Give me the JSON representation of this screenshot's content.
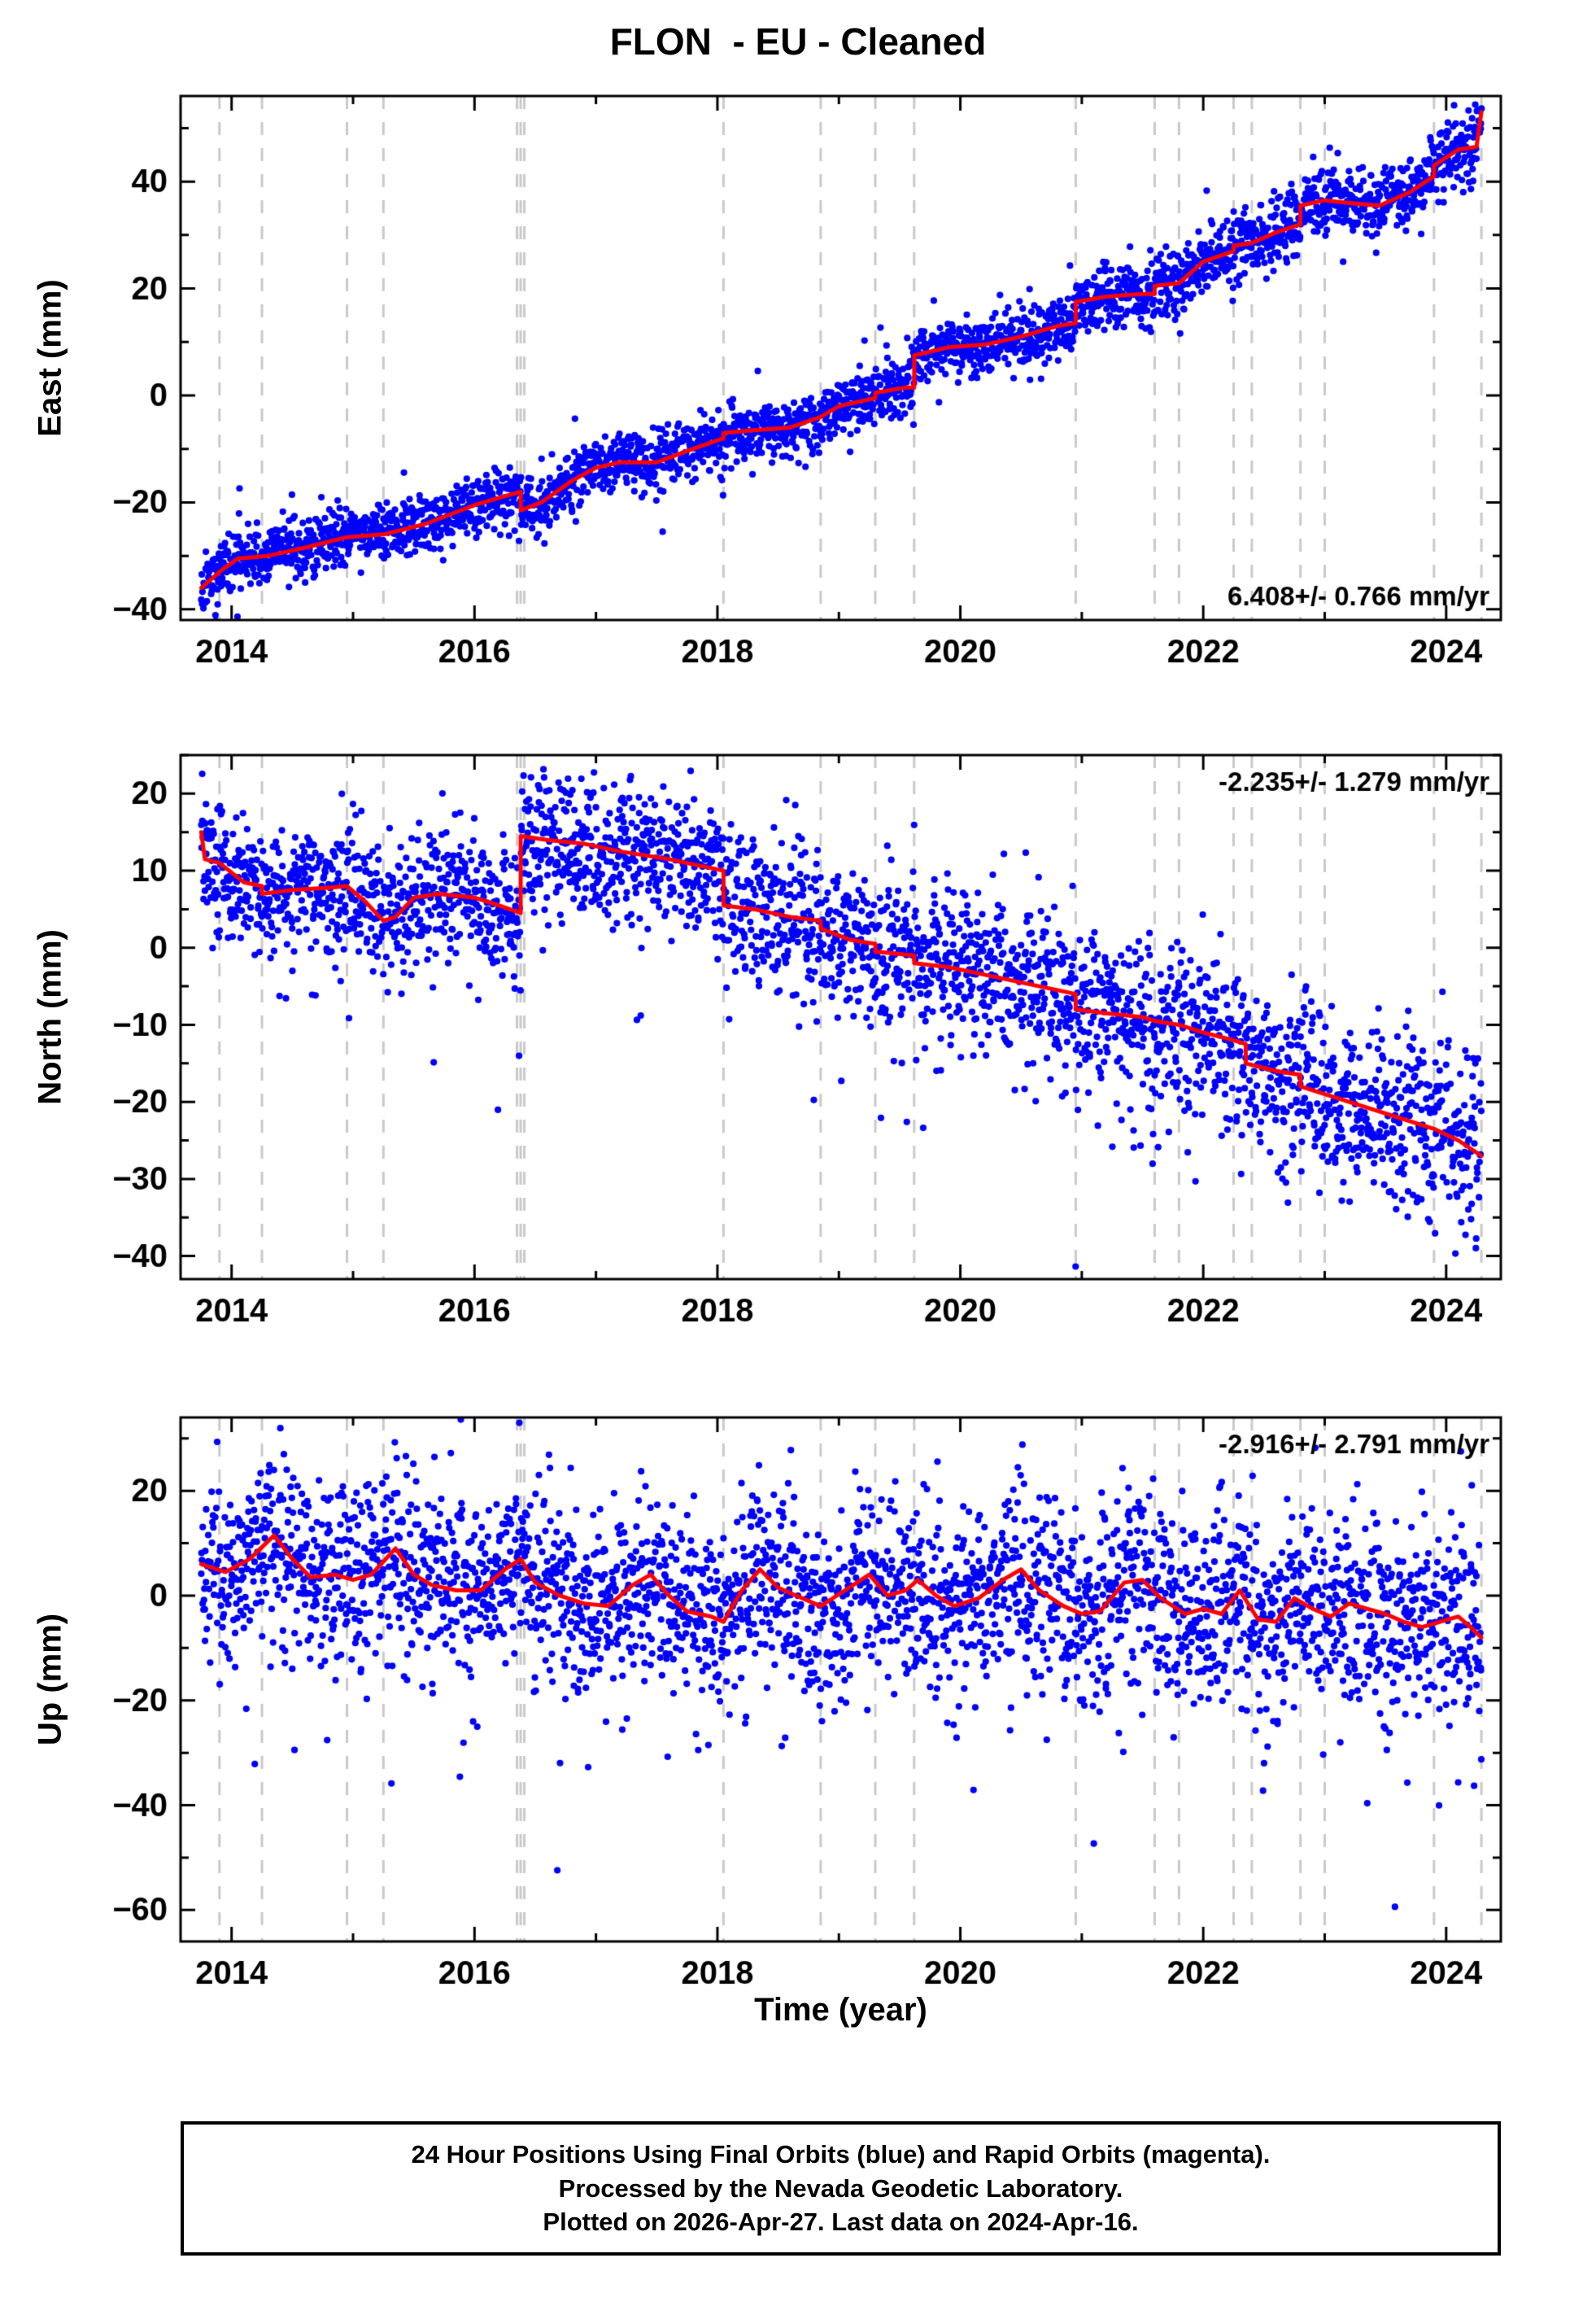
{
  "title": "FLON  - EU - Cleaned",
  "xlabel": "Time (year)",
  "footer": {
    "line1": "24 Hour Positions Using Final Orbits (blue) and Rapid Orbits (magenta).",
    "line2": "Processed by the Nevada Geodetic Laboratory.",
    "line3": "Plotted on 2026-Apr-27. Last data on 2024-Apr-16."
  },
  "colors": {
    "points": "#0000ff",
    "trend": "#ff0000",
    "events": "#c9c9c9",
    "frame": "#000000"
  },
  "x_axis": {
    "lim": [
      2013.58,
      2024.45
    ],
    "tick_years": [
      2014,
      2015,
      2016,
      2017,
      2018,
      2019,
      2020,
      2021,
      2022,
      2023,
      2024
    ],
    "label_years": [
      2014,
      2016,
      2018,
      2020,
      2022,
      2024
    ]
  },
  "events": [
    2013.9,
    2014.25,
    2014.95,
    2015.25,
    2016.35,
    2016.38,
    2016.41,
    2018.05,
    2018.85,
    2019.3,
    2019.62,
    2020.95,
    2021.6,
    2021.8,
    2022.25,
    2022.4,
    2022.8,
    2023.0,
    2023.9,
    2024.29
  ],
  "t_start": 2013.75,
  "t_end": 2024.29,
  "n_points": 3000,
  "chart_data": [
    {
      "type": "scatter",
      "name": "east",
      "ylabel": "East (mm)",
      "ylim": [
        -42,
        56
      ],
      "yticks": [
        -40,
        -20,
        0,
        20,
        40
      ],
      "ytick_minor_step": 10,
      "rate_label": "6.408+/- 0.766 mm/yr",
      "rate_pos": "bottom-right",
      "seed": 11,
      "noise_sd_start": 2.5,
      "noise_sd_end": 3.2,
      "outliers": {
        "prob": 0.03,
        "mean": 0,
        "sd": 6
      },
      "trend": [
        [
          2013.75,
          -36
        ],
        [
          2013.9,
          -33
        ],
        [
          2014.05,
          -30.5
        ],
        [
          2014.3,
          -30
        ],
        [
          2014.6,
          -28.5
        ],
        [
          2014.95,
          -26.5
        ],
        [
          2015.25,
          -26
        ],
        [
          2015.6,
          -24
        ],
        [
          2016.0,
          -20.5
        ],
        [
          2016.3,
          -18.5
        ],
        [
          2016.38,
          -18
        ],
        [
          2016.38,
          -21.5
        ],
        [
          2016.55,
          -20
        ],
        [
          2016.8,
          -16
        ],
        [
          2017.0,
          -13.5
        ],
        [
          2017.2,
          -12.5
        ],
        [
          2017.5,
          -12.5
        ],
        [
          2017.8,
          -10
        ],
        [
          2018.05,
          -8
        ],
        [
          2018.05,
          -7
        ],
        [
          2018.3,
          -6.5
        ],
        [
          2018.6,
          -6
        ],
        [
          2018.85,
          -4
        ],
        [
          2019.0,
          -2
        ],
        [
          2019.3,
          -0.5
        ],
        [
          2019.3,
          0.5
        ],
        [
          2019.55,
          1.5
        ],
        [
          2019.62,
          1.5
        ],
        [
          2019.62,
          7.5
        ],
        [
          2019.9,
          9
        ],
        [
          2020.2,
          9.5
        ],
        [
          2020.5,
          11
        ],
        [
          2020.8,
          13
        ],
        [
          2020.95,
          13.5
        ],
        [
          2020.95,
          17.5
        ],
        [
          2021.2,
          18.5
        ],
        [
          2021.5,
          19
        ],
        [
          2021.6,
          19
        ],
        [
          2021.6,
          20.5
        ],
        [
          2021.8,
          21
        ],
        [
          2022.0,
          25
        ],
        [
          2022.25,
          27
        ],
        [
          2022.25,
          28
        ],
        [
          2022.4,
          28.5
        ],
        [
          2022.6,
          30.5
        ],
        [
          2022.8,
          32
        ],
        [
          2022.8,
          35.5
        ],
        [
          2023.0,
          36.5
        ],
        [
          2023.2,
          36
        ],
        [
          2023.45,
          35.5
        ],
        [
          2023.7,
          38
        ],
        [
          2023.9,
          41
        ],
        [
          2023.9,
          43
        ],
        [
          2024.1,
          46
        ],
        [
          2024.25,
          46.5
        ],
        [
          2024.29,
          53
        ]
      ]
    },
    {
      "type": "scatter",
      "name": "north",
      "ylabel": "North (mm)",
      "ylim": [
        -43,
        25
      ],
      "yticks": [
        -40,
        -30,
        -20,
        -10,
        0,
        10,
        20
      ],
      "ytick_minor_step": 5,
      "rate_label": "-2.235+/- 1.279 mm/yr",
      "rate_pos": "top-right",
      "seed": 22,
      "noise_sd_start": 3.8,
      "noise_sd_end": 6.0,
      "outliers": {
        "prob": 0.06,
        "mean": -7,
        "sd": 7
      },
      "trend": [
        [
          2013.75,
          15
        ],
        [
          2013.78,
          11.5
        ],
        [
          2013.9,
          11
        ],
        [
          2014.1,
          8.5
        ],
        [
          2014.25,
          8
        ],
        [
          2014.25,
          7
        ],
        [
          2014.5,
          7.5
        ],
        [
          2014.8,
          7.8
        ],
        [
          2014.95,
          8
        ],
        [
          2015.1,
          6
        ],
        [
          2015.25,
          3.5
        ],
        [
          2015.35,
          4
        ],
        [
          2015.5,
          6.5
        ],
        [
          2015.7,
          7
        ],
        [
          2016.0,
          6.5
        ],
        [
          2016.2,
          5.5
        ],
        [
          2016.38,
          4.5
        ],
        [
          2016.38,
          14.5
        ],
        [
          2016.6,
          14
        ],
        [
          2016.9,
          13.5
        ],
        [
          2017.2,
          12.5
        ],
        [
          2017.6,
          11.5
        ],
        [
          2017.9,
          10.5
        ],
        [
          2018.05,
          10
        ],
        [
          2018.05,
          5.5
        ],
        [
          2018.3,
          5
        ],
        [
          2018.6,
          4
        ],
        [
          2018.85,
          3.5
        ],
        [
          2018.85,
          2.5
        ],
        [
          2019.1,
          1
        ],
        [
          2019.3,
          0.5
        ],
        [
          2019.3,
          -0.5
        ],
        [
          2019.62,
          -1
        ],
        [
          2019.62,
          -2
        ],
        [
          2019.9,
          -2.5
        ],
        [
          2020.2,
          -3.5
        ],
        [
          2020.5,
          -4.5
        ],
        [
          2020.8,
          -5.5
        ],
        [
          2020.95,
          -6
        ],
        [
          2020.95,
          -8
        ],
        [
          2021.2,
          -8.5
        ],
        [
          2021.5,
          -9
        ],
        [
          2021.6,
          -9.5
        ],
        [
          2021.8,
          -10
        ],
        [
          2022.0,
          -11
        ],
        [
          2022.25,
          -12
        ],
        [
          2022.35,
          -12.5
        ],
        [
          2022.35,
          -15
        ],
        [
          2022.6,
          -16
        ],
        [
          2022.8,
          -16.5
        ],
        [
          2022.8,
          -18
        ],
        [
          2023.0,
          -19
        ],
        [
          2023.3,
          -20.5
        ],
        [
          2023.6,
          -22
        ],
        [
          2023.9,
          -23.5
        ],
        [
          2024.1,
          -25
        ],
        [
          2024.29,
          -27
        ]
      ]
    },
    {
      "type": "scatter",
      "name": "up",
      "ylabel": "Up (mm)",
      "ylim": [
        -66,
        34
      ],
      "yticks": [
        -60,
        -40,
        -20,
        0,
        20
      ],
      "ytick_minor_step": 10,
      "rate_label": "-2.916+/- 2.791 mm/yr",
      "rate_pos": "top-right",
      "seed": 33,
      "noise_sd_start": 8.5,
      "noise_sd_end": 9.5,
      "outliers": {
        "prob": 0.05,
        "mean": -5,
        "sd": 15
      },
      "trend": [
        [
          2013.75,
          6
        ],
        [
          2013.95,
          4.5
        ],
        [
          2014.15,
          7
        ],
        [
          2014.35,
          11.5
        ],
        [
          2014.5,
          7
        ],
        [
          2014.65,
          3.5
        ],
        [
          2014.85,
          4
        ],
        [
          2015.0,
          3
        ],
        [
          2015.15,
          4
        ],
        [
          2015.35,
          9
        ],
        [
          2015.5,
          4
        ],
        [
          2015.65,
          2
        ],
        [
          2015.85,
          1
        ],
        [
          2016.05,
          1
        ],
        [
          2016.25,
          5
        ],
        [
          2016.38,
          7
        ],
        [
          2016.5,
          2.5
        ],
        [
          2016.7,
          0
        ],
        [
          2016.9,
          -1.5
        ],
        [
          2017.1,
          -2
        ],
        [
          2017.3,
          2
        ],
        [
          2017.45,
          4
        ],
        [
          2017.6,
          0
        ],
        [
          2017.75,
          -3
        ],
        [
          2017.95,
          -4
        ],
        [
          2018.05,
          -5
        ],
        [
          2018.2,
          1
        ],
        [
          2018.35,
          5
        ],
        [
          2018.5,
          1.5
        ],
        [
          2018.65,
          0
        ],
        [
          2018.85,
          -2
        ],
        [
          2019.05,
          1
        ],
        [
          2019.25,
          4
        ],
        [
          2019.4,
          0
        ],
        [
          2019.55,
          1
        ],
        [
          2019.65,
          3
        ],
        [
          2019.8,
          0
        ],
        [
          2019.95,
          -2
        ],
        [
          2020.15,
          -0.5
        ],
        [
          2020.35,
          3
        ],
        [
          2020.5,
          5
        ],
        [
          2020.65,
          1
        ],
        [
          2020.85,
          -2
        ],
        [
          2021.0,
          -3.5
        ],
        [
          2021.15,
          -3
        ],
        [
          2021.35,
          2.5
        ],
        [
          2021.5,
          3
        ],
        [
          2021.65,
          -0.5
        ],
        [
          2021.85,
          -3.5
        ],
        [
          2022.0,
          -2.5
        ],
        [
          2022.15,
          -3.5
        ],
        [
          2022.3,
          1
        ],
        [
          2022.45,
          -4.5
        ],
        [
          2022.6,
          -5
        ],
        [
          2022.75,
          -0.5
        ],
        [
          2022.9,
          -2.5
        ],
        [
          2023.05,
          -4
        ],
        [
          2023.2,
          -1.5
        ],
        [
          2023.35,
          -2.5
        ],
        [
          2023.5,
          -3.5
        ],
        [
          2023.65,
          -5
        ],
        [
          2023.8,
          -6
        ],
        [
          2023.95,
          -5
        ],
        [
          2024.1,
          -4
        ],
        [
          2024.2,
          -6
        ],
        [
          2024.29,
          -8
        ]
      ]
    }
  ]
}
